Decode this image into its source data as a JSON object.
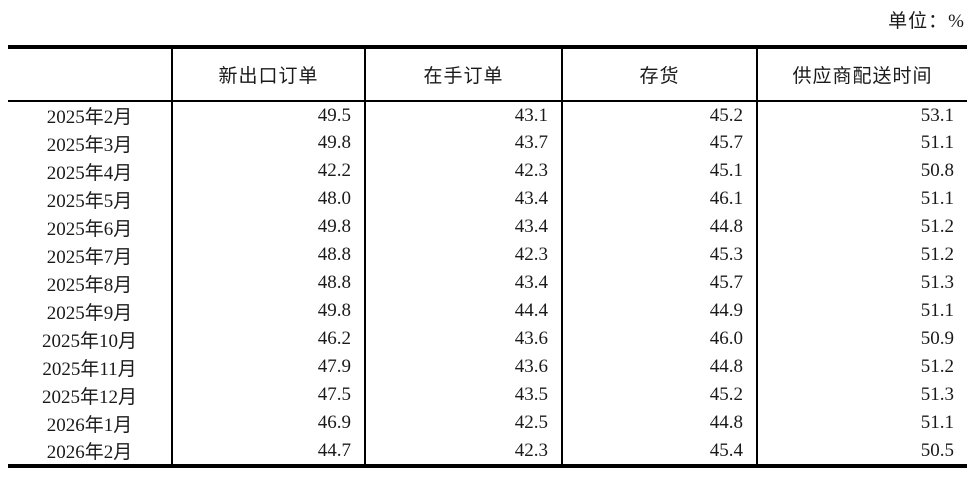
{
  "unit_label": "单位：%",
  "colors": {
    "text": "#1a1a1a",
    "line": "#000000",
    "background": "#ffffff"
  },
  "table": {
    "columns": [
      "",
      "新出口订单",
      "在手订单",
      "存货",
      "供应商配送时间"
    ],
    "rows": [
      {
        "month": "2025年2月",
        "values": [
          "49.5",
          "43.1",
          "45.2",
          "53.1"
        ]
      },
      {
        "month": "2025年3月",
        "values": [
          "49.8",
          "43.7",
          "45.7",
          "51.1"
        ]
      },
      {
        "month": "2025年4月",
        "values": [
          "42.2",
          "42.3",
          "45.1",
          "50.8"
        ]
      },
      {
        "month": "2025年5月",
        "values": [
          "48.0",
          "43.4",
          "46.1",
          "51.1"
        ]
      },
      {
        "month": "2025年6月",
        "values": [
          "49.8",
          "43.4",
          "44.8",
          "51.2"
        ]
      },
      {
        "month": "2025年7月",
        "values": [
          "48.8",
          "42.3",
          "45.3",
          "51.2"
        ]
      },
      {
        "month": "2025年8月",
        "values": [
          "48.8",
          "43.4",
          "45.7",
          "51.3"
        ]
      },
      {
        "month": "2025年9月",
        "values": [
          "49.8",
          "44.4",
          "44.9",
          "51.1"
        ]
      },
      {
        "month": "2025年10月",
        "values": [
          "46.2",
          "43.6",
          "46.0",
          "50.9"
        ]
      },
      {
        "month": "2025年11月",
        "values": [
          "47.9",
          "43.6",
          "44.8",
          "51.2"
        ]
      },
      {
        "month": "2025年12月",
        "values": [
          "47.5",
          "43.5",
          "45.2",
          "51.3"
        ]
      },
      {
        "month": "2026年1月",
        "values": [
          "46.9",
          "42.5",
          "44.8",
          "51.1"
        ]
      },
      {
        "month": "2026年2月",
        "values": [
          "44.7",
          "42.3",
          "45.4",
          "50.5"
        ]
      }
    ]
  }
}
